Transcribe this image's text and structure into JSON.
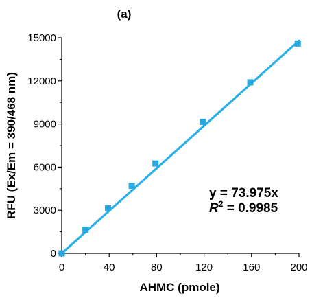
{
  "chart_data": {
    "type": "scatter",
    "panel_label": "(a)",
    "xlabel": "AHMC (pmole)",
    "ylabel": "RFU (Ex/Em = 390/468 nm)",
    "xlim": [
      0,
      200
    ],
    "ylim": [
      0,
      15000
    ],
    "x_ticks": [
      0,
      40,
      80,
      120,
      160,
      200
    ],
    "y_ticks": [
      0,
      3000,
      6000,
      9000,
      12000,
      15000
    ],
    "tick_labels": {
      "x": [
        "0",
        "40",
        "80",
        "120",
        "160",
        "200"
      ],
      "y": [
        "0",
        "3000",
        "6000",
        "9000",
        "12000",
        "15000"
      ]
    },
    "grid": false,
    "series": [
      {
        "x": [
          0,
          20,
          39,
          59,
          79,
          119,
          159,
          199
        ],
        "y": [
          0,
          1650,
          3150,
          4700,
          6250,
          9150,
          11900,
          14600
        ],
        "marker": "square",
        "color": "#29a8df"
      }
    ],
    "trendline": {
      "slope": 73.975,
      "x_range": [
        0,
        200
      ],
      "color": "#29b0e8"
    },
    "equation_text": "y = 73.975x",
    "r2_symbol": "R",
    "r2_sup": "2",
    "r2_value_text": " = 0.9985"
  }
}
